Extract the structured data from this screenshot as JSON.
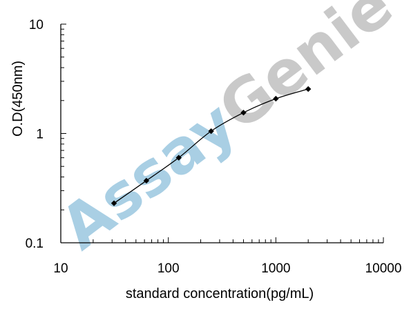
{
  "watermark": {
    "prefix": "Assay",
    "suffix": "Genie",
    "prefix_color": "#a9cfe4",
    "suffix_color": "#c9c9c9"
  },
  "chart_data": {
    "type": "line",
    "title": "",
    "xlabel": "standard concentration(pg/mL)",
    "ylabel": "O.D(450nm)",
    "x_scale": "log",
    "y_scale": "log",
    "xlim": [
      10,
      10000
    ],
    "ylim": [
      0.1,
      10
    ],
    "x_ticks": [
      {
        "value": 10,
        "label": "10"
      },
      {
        "value": 100,
        "label": "100"
      },
      {
        "value": 1000,
        "label": "1000"
      },
      {
        "value": 10000,
        "label": "10000"
      }
    ],
    "y_ticks": [
      {
        "value": 0.1,
        "label": "0.1"
      },
      {
        "value": 1,
        "label": "1"
      },
      {
        "value": 10,
        "label": "10"
      }
    ],
    "grid": false,
    "marker": "diamond",
    "line_color": "#000000",
    "series": [
      {
        "x": [
          31.25,
          62.5,
          125,
          250,
          500,
          1000,
          2000
        ],
        "y": [
          0.23,
          0.37,
          0.6,
          1.05,
          1.55,
          2.08,
          2.55
        ]
      }
    ]
  }
}
